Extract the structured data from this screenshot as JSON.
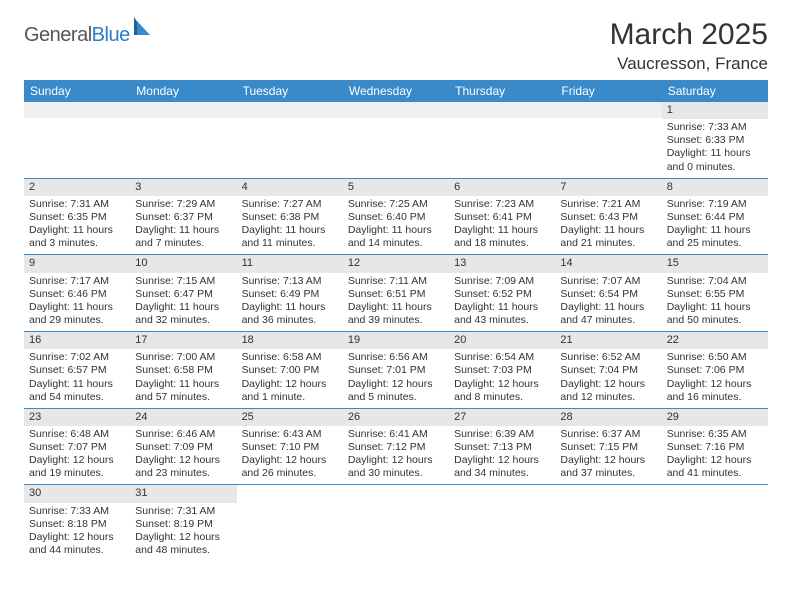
{
  "logo": {
    "part1": "General",
    "part2": "Blue"
  },
  "title": "March 2025",
  "location": "Vaucresson, France",
  "weekdays": [
    "Sunday",
    "Monday",
    "Tuesday",
    "Wednesday",
    "Thursday",
    "Friday",
    "Saturday"
  ],
  "colors": {
    "header_bg": "#3a89c9",
    "header_fg": "#ffffff",
    "daynum_bg": "#e7e7e7",
    "border": "#3a89c9",
    "logo_blue": "#2a7fc9"
  },
  "weeks": [
    [
      null,
      null,
      null,
      null,
      null,
      null,
      {
        "n": "1",
        "sunrise": "7:33 AM",
        "sunset": "6:33 PM",
        "dl1": "Daylight: 11 hours",
        "dl2": "and 0 minutes."
      }
    ],
    [
      {
        "n": "2",
        "sunrise": "7:31 AM",
        "sunset": "6:35 PM",
        "dl1": "Daylight: 11 hours",
        "dl2": "and 3 minutes."
      },
      {
        "n": "3",
        "sunrise": "7:29 AM",
        "sunset": "6:37 PM",
        "dl1": "Daylight: 11 hours",
        "dl2": "and 7 minutes."
      },
      {
        "n": "4",
        "sunrise": "7:27 AM",
        "sunset": "6:38 PM",
        "dl1": "Daylight: 11 hours",
        "dl2": "and 11 minutes."
      },
      {
        "n": "5",
        "sunrise": "7:25 AM",
        "sunset": "6:40 PM",
        "dl1": "Daylight: 11 hours",
        "dl2": "and 14 minutes."
      },
      {
        "n": "6",
        "sunrise": "7:23 AM",
        "sunset": "6:41 PM",
        "dl1": "Daylight: 11 hours",
        "dl2": "and 18 minutes."
      },
      {
        "n": "7",
        "sunrise": "7:21 AM",
        "sunset": "6:43 PM",
        "dl1": "Daylight: 11 hours",
        "dl2": "and 21 minutes."
      },
      {
        "n": "8",
        "sunrise": "7:19 AM",
        "sunset": "6:44 PM",
        "dl1": "Daylight: 11 hours",
        "dl2": "and 25 minutes."
      }
    ],
    [
      {
        "n": "9",
        "sunrise": "7:17 AM",
        "sunset": "6:46 PM",
        "dl1": "Daylight: 11 hours",
        "dl2": "and 29 minutes."
      },
      {
        "n": "10",
        "sunrise": "7:15 AM",
        "sunset": "6:47 PM",
        "dl1": "Daylight: 11 hours",
        "dl2": "and 32 minutes."
      },
      {
        "n": "11",
        "sunrise": "7:13 AM",
        "sunset": "6:49 PM",
        "dl1": "Daylight: 11 hours",
        "dl2": "and 36 minutes."
      },
      {
        "n": "12",
        "sunrise": "7:11 AM",
        "sunset": "6:51 PM",
        "dl1": "Daylight: 11 hours",
        "dl2": "and 39 minutes."
      },
      {
        "n": "13",
        "sunrise": "7:09 AM",
        "sunset": "6:52 PM",
        "dl1": "Daylight: 11 hours",
        "dl2": "and 43 minutes."
      },
      {
        "n": "14",
        "sunrise": "7:07 AM",
        "sunset": "6:54 PM",
        "dl1": "Daylight: 11 hours",
        "dl2": "and 47 minutes."
      },
      {
        "n": "15",
        "sunrise": "7:04 AM",
        "sunset": "6:55 PM",
        "dl1": "Daylight: 11 hours",
        "dl2": "and 50 minutes."
      }
    ],
    [
      {
        "n": "16",
        "sunrise": "7:02 AM",
        "sunset": "6:57 PM",
        "dl1": "Daylight: 11 hours",
        "dl2": "and 54 minutes."
      },
      {
        "n": "17",
        "sunrise": "7:00 AM",
        "sunset": "6:58 PM",
        "dl1": "Daylight: 11 hours",
        "dl2": "and 57 minutes."
      },
      {
        "n": "18",
        "sunrise": "6:58 AM",
        "sunset": "7:00 PM",
        "dl1": "Daylight: 12 hours",
        "dl2": "and 1 minute."
      },
      {
        "n": "19",
        "sunrise": "6:56 AM",
        "sunset": "7:01 PM",
        "dl1": "Daylight: 12 hours",
        "dl2": "and 5 minutes."
      },
      {
        "n": "20",
        "sunrise": "6:54 AM",
        "sunset": "7:03 PM",
        "dl1": "Daylight: 12 hours",
        "dl2": "and 8 minutes."
      },
      {
        "n": "21",
        "sunrise": "6:52 AM",
        "sunset": "7:04 PM",
        "dl1": "Daylight: 12 hours",
        "dl2": "and 12 minutes."
      },
      {
        "n": "22",
        "sunrise": "6:50 AM",
        "sunset": "7:06 PM",
        "dl1": "Daylight: 12 hours",
        "dl2": "and 16 minutes."
      }
    ],
    [
      {
        "n": "23",
        "sunrise": "6:48 AM",
        "sunset": "7:07 PM",
        "dl1": "Daylight: 12 hours",
        "dl2": "and 19 minutes."
      },
      {
        "n": "24",
        "sunrise": "6:46 AM",
        "sunset": "7:09 PM",
        "dl1": "Daylight: 12 hours",
        "dl2": "and 23 minutes."
      },
      {
        "n": "25",
        "sunrise": "6:43 AM",
        "sunset": "7:10 PM",
        "dl1": "Daylight: 12 hours",
        "dl2": "and 26 minutes."
      },
      {
        "n": "26",
        "sunrise": "6:41 AM",
        "sunset": "7:12 PM",
        "dl1": "Daylight: 12 hours",
        "dl2": "and 30 minutes."
      },
      {
        "n": "27",
        "sunrise": "6:39 AM",
        "sunset": "7:13 PM",
        "dl1": "Daylight: 12 hours",
        "dl2": "and 34 minutes."
      },
      {
        "n": "28",
        "sunrise": "6:37 AM",
        "sunset": "7:15 PM",
        "dl1": "Daylight: 12 hours",
        "dl2": "and 37 minutes."
      },
      {
        "n": "29",
        "sunrise": "6:35 AM",
        "sunset": "7:16 PM",
        "dl1": "Daylight: 12 hours",
        "dl2": "and 41 minutes."
      }
    ],
    [
      {
        "n": "30",
        "sunrise": "7:33 AM",
        "sunset": "8:18 PM",
        "dl1": "Daylight: 12 hours",
        "dl2": "and 44 minutes."
      },
      {
        "n": "31",
        "sunrise": "7:31 AM",
        "sunset": "8:19 PM",
        "dl1": "Daylight: 12 hours",
        "dl2": "and 48 minutes."
      },
      null,
      null,
      null,
      null,
      null
    ]
  ]
}
